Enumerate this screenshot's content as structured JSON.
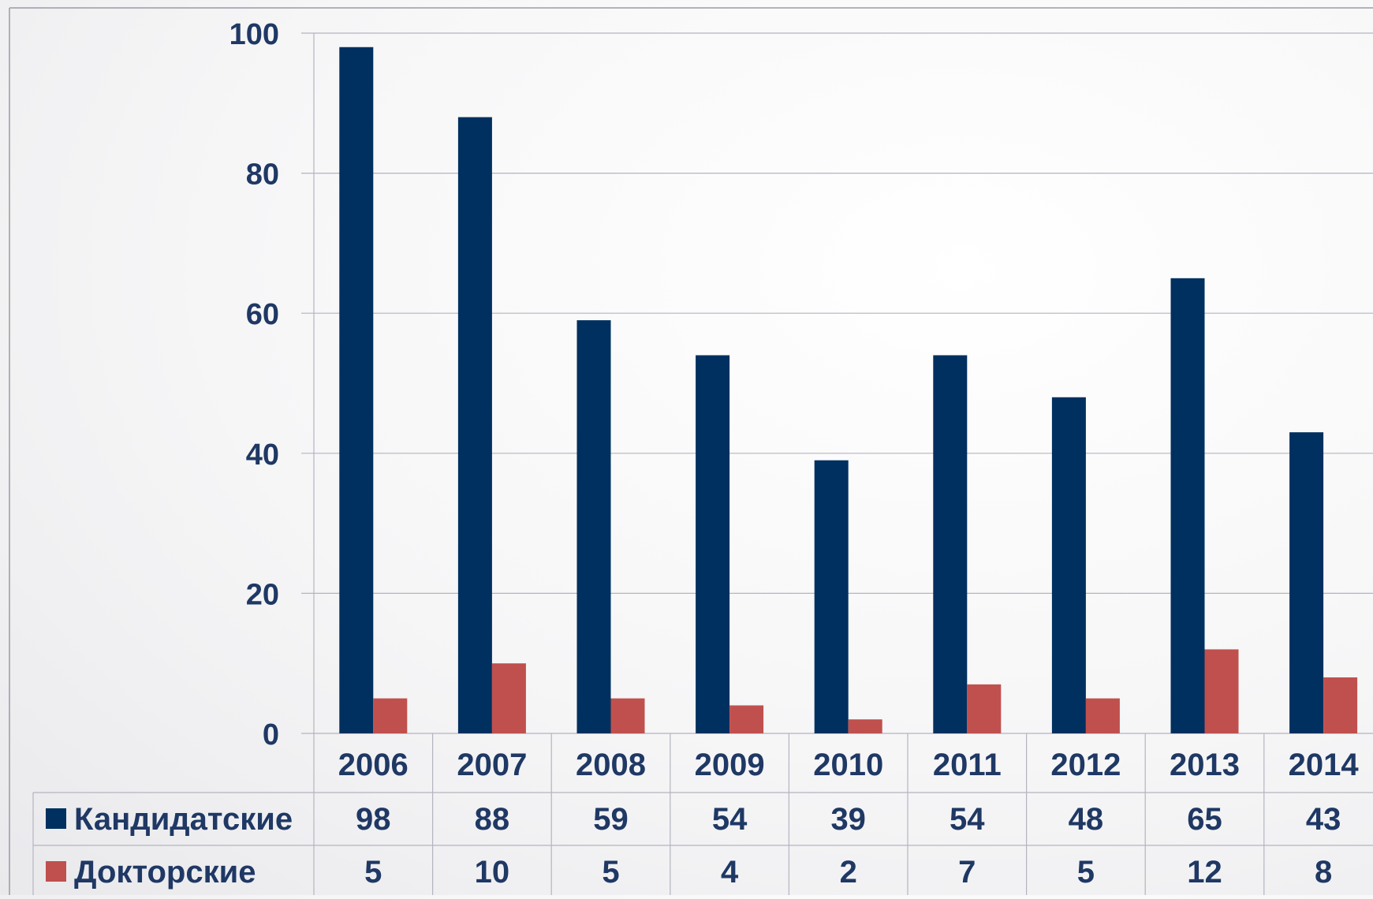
{
  "chart_data": {
    "type": "bar",
    "categories": [
      "2006",
      "2007",
      "2008",
      "2009",
      "2010",
      "2011",
      "2012",
      "2013",
      "2014"
    ],
    "series": [
      {
        "name": "Кандидатские",
        "color": "#00305f",
        "values": [
          98,
          88,
          59,
          54,
          39,
          54,
          48,
          65,
          43
        ]
      },
      {
        "name": "Докторские",
        "color": "#c0504d",
        "values": [
          5,
          10,
          5,
          4,
          2,
          7,
          5,
          12,
          8
        ]
      }
    ],
    "ylim": [
      0,
      100
    ],
    "yticks": [
      "0",
      "20",
      "40",
      "60",
      "80",
      "100"
    ],
    "grid": true,
    "legend": "data-table",
    "data_table": true,
    "text_color": "#1f3864"
  }
}
